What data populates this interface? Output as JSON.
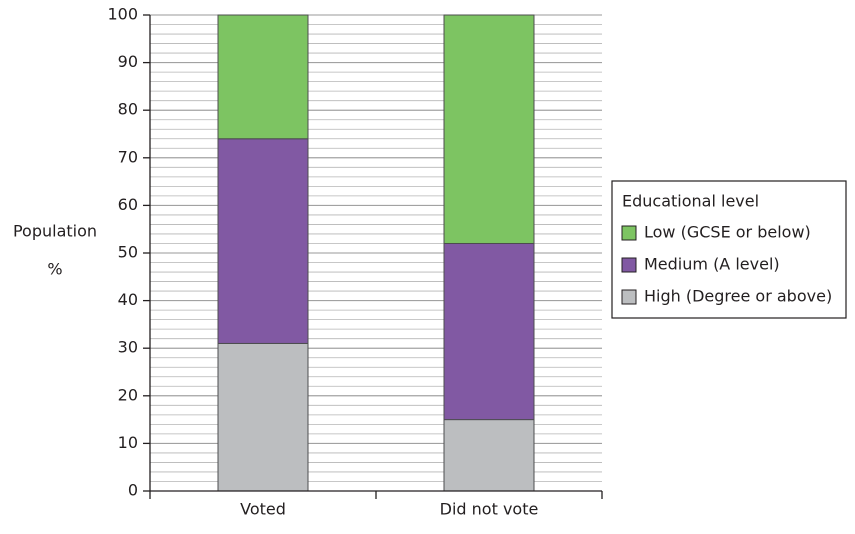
{
  "chart_data": {
    "type": "stacked_bar",
    "ylabel": [
      "Population",
      "%"
    ],
    "categories": [
      "Voted",
      "Did not vote"
    ],
    "series": [
      {
        "name": "High (Degree or above)",
        "color": "#bcbec0",
        "values": [
          31,
          15
        ]
      },
      {
        "name": "Medium (A level)",
        "color": "#8159a3",
        "values": [
          43,
          37
        ]
      },
      {
        "name": "Low (GCSE or below)",
        "color": "#7dc462",
        "values": [
          26,
          48
        ]
      }
    ],
    "legend_title": "Educational level",
    "legend": "right",
    "ylim": [
      0,
      100
    ],
    "yticks": [
      0,
      10,
      20,
      30,
      40,
      50,
      60,
      70,
      80,
      90,
      100
    ],
    "grid": true,
    "minor_grid_step": 2
  }
}
